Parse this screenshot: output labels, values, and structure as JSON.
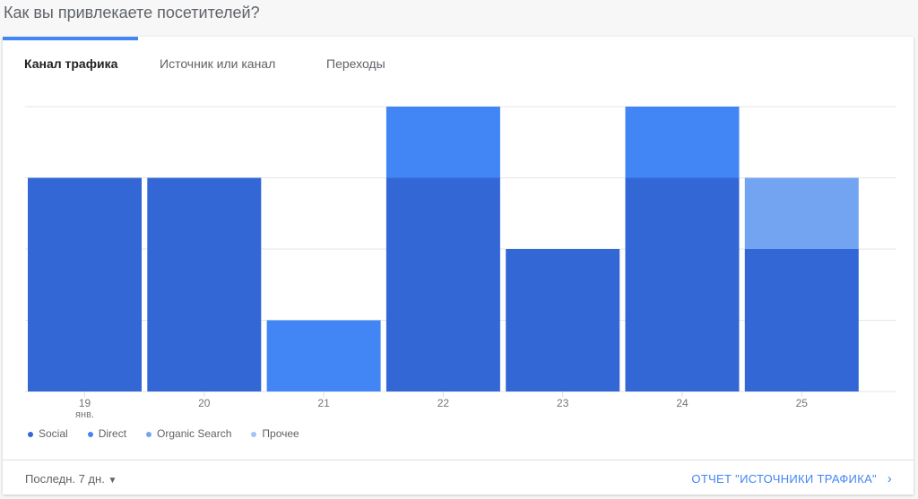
{
  "title": "Как вы привлекаете посетителей?",
  "tabs": [
    "Канал трафика",
    "Источник или канал",
    "Переходы"
  ],
  "footer": {
    "period": "Последн. 7 дн.",
    "report": "ОТЧЕТ \"ИСТОЧНИКИ ТРАФИКА\""
  },
  "chart_data": {
    "type": "bar",
    "stacked": true,
    "categories": [
      "19",
      "20",
      "21",
      "22",
      "23",
      "24",
      "25"
    ],
    "category_sublabels": [
      "янв.",
      "",
      "",
      "",
      "",
      "",
      ""
    ],
    "series": [
      {
        "name": "Social",
        "color": "#3367d6",
        "values": [
          3,
          3,
          0,
          3,
          2,
          3,
          2
        ]
      },
      {
        "name": "Direct",
        "color": "#4285f4",
        "values": [
          0,
          0,
          1,
          1,
          0,
          1,
          0
        ]
      },
      {
        "name": "Organic Search",
        "color": "#72a4f2",
        "values": [
          0,
          0,
          0,
          0,
          0,
          0,
          1
        ]
      },
      {
        "name": "Прочее",
        "color": "#a1c2fa",
        "values": [
          0,
          0,
          0,
          0,
          0,
          0,
          0
        ]
      }
    ],
    "ylim": [
      0,
      4
    ],
    "grid": true,
    "legend": "bottom-left"
  }
}
